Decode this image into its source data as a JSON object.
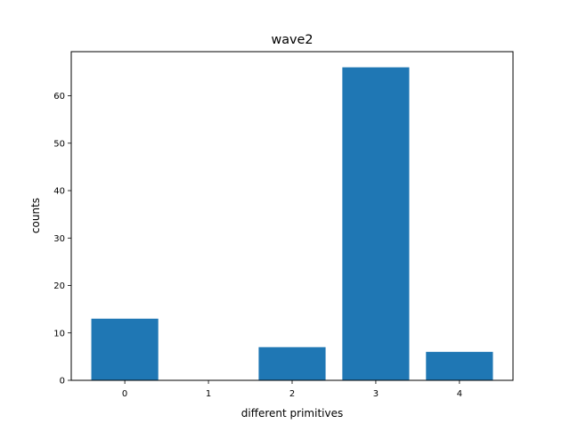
{
  "chart_data": {
    "type": "bar",
    "title": "wave2",
    "xlabel": "different primitives",
    "ylabel": "counts",
    "categories": [
      "0",
      "1",
      "2",
      "3",
      "4"
    ],
    "values": [
      13,
      0,
      7,
      66,
      6
    ],
    "ylim": [
      0,
      69.3
    ],
    "yticks": [
      "0",
      "10",
      "20",
      "30",
      "40",
      "50",
      "60"
    ],
    "grid": false,
    "bar_color": "#1f77b4"
  }
}
